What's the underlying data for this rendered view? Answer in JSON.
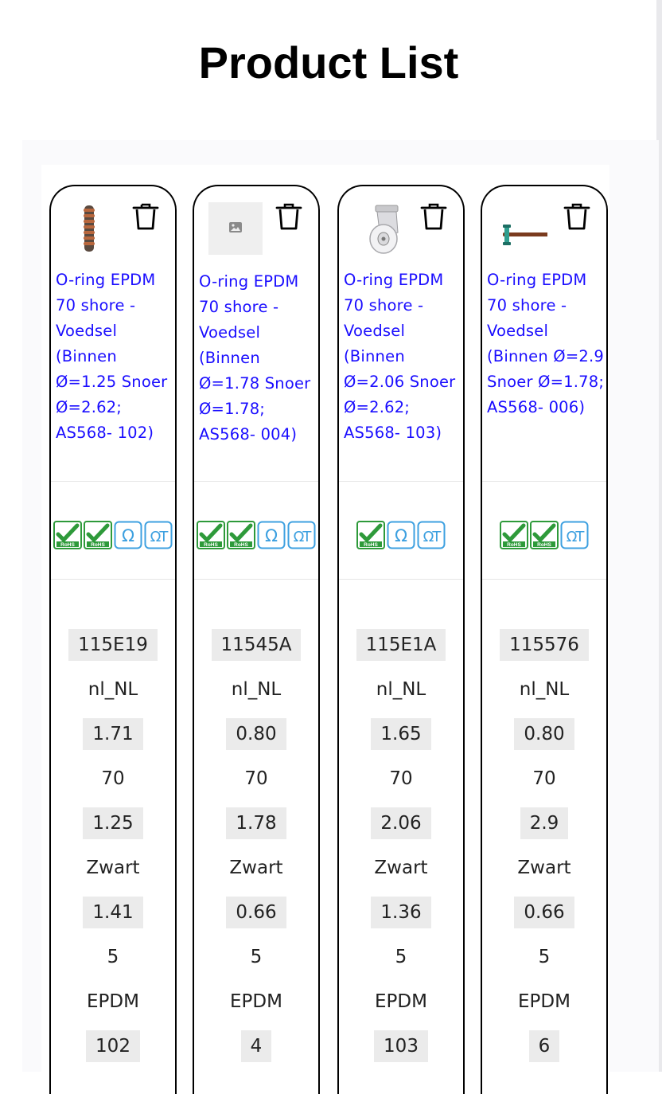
{
  "page": {
    "title": "Product List"
  },
  "products": [
    {
      "thumb": "spring-icon",
      "title": "O-ring EPDM 70 shore - Voedsel (Binnen Ø=1.25 Snoer Ø=2.62; AS568- 102)",
      "badges": [
        "rohs-icon",
        "rohs-icon",
        "omega-icon",
        "omega-t-icon"
      ],
      "specs": {
        "code": "115E19",
        "locale": "nl_NL",
        "price": "1.71",
        "shore": "70",
        "inner_diameter": "1.25",
        "color": "Zwart",
        "weight": "1.41",
        "qty": "5",
        "material": "EPDM",
        "as568": "102"
      }
    },
    {
      "thumb": "image-placeholder-icon",
      "title": "O-ring EPDM 70 shore - Voedsel (Binnen Ø=1.78 Snoer Ø=1.78; AS568- 004)",
      "badges": [
        "rohs-icon",
        "rohs-icon",
        "omega-icon",
        "omega-t-icon"
      ],
      "specs": {
        "code": "11545A",
        "locale": "nl_NL",
        "price": "0.80",
        "shore": "70",
        "inner_diameter": "1.78",
        "color": "Zwart",
        "weight": "0.66",
        "qty": "5",
        "material": "EPDM",
        "as568": "4"
      }
    },
    {
      "thumb": "caster-wheel-icon",
      "title": "O-ring EPDM 70 shore - Voedsel (Binnen Ø=2.06 Snoer Ø=2.62; AS568- 103)",
      "badges": [
        "rohs-icon",
        "omega-icon",
        "omega-t-icon"
      ],
      "specs": {
        "code": "115E1A",
        "locale": "nl_NL",
        "price": "1.65",
        "shore": "70",
        "inner_diameter": "2.06",
        "color": "Zwart",
        "weight": "1.36",
        "qty": "5",
        "material": "EPDM",
        "as568": "103"
      }
    },
    {
      "thumb": "hammer-icon",
      "title": "O-ring EPDM 70 shore - Voedsel (Binnen Ø=2.9 Snoer Ø=1.78; AS568- 006)",
      "badges": [
        "rohs-icon",
        "rohs-icon",
        "omega-t-icon"
      ],
      "specs": {
        "code": "115576",
        "locale": "nl_NL",
        "price": "0.80",
        "shore": "70",
        "inner_diameter": "2.9",
        "color": "Zwart",
        "weight": "0.66",
        "qty": "5",
        "material": "EPDM",
        "as568": "6"
      }
    }
  ],
  "colors": {
    "link": "#1a0dff",
    "rohs_green": "#2e9a3a",
    "omega_blue": "#3da0e0",
    "spec_highlight": "#ebebeb"
  }
}
